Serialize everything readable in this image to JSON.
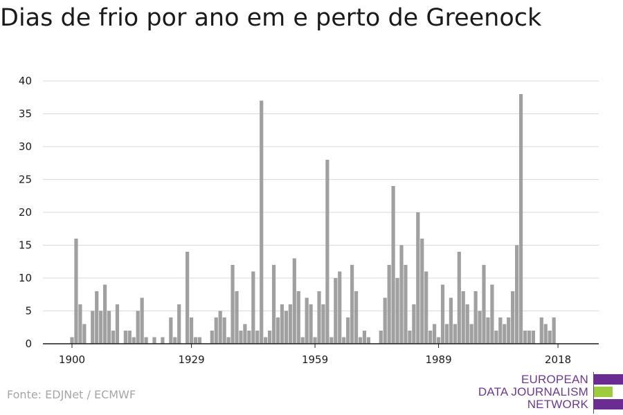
{
  "title": "Dias de frio por ano em e perto de Greenock",
  "source": "Fonte: EDJNet / ECMWF",
  "logo": {
    "line1": "EUROPEAN",
    "line2": "DATA JOURNALISM",
    "line3": "NETWORK",
    "colors": {
      "purple": "#6b2c91",
      "green": "#9ccc3c"
    }
  },
  "chart_data": {
    "type": "bar",
    "title": "Dias de frio por ano em e perto de Greenock",
    "xlabel": "",
    "ylabel": "",
    "ylim": [
      0,
      40
    ],
    "yticks": [
      0,
      5,
      10,
      15,
      20,
      25,
      30,
      35,
      40
    ],
    "xticks": [
      1900,
      1929,
      1959,
      1989,
      2018
    ],
    "x_start": 1900,
    "bar_color": "#a0a0a0",
    "grid": true,
    "values": [
      1,
      16,
      6,
      3,
      0,
      5,
      8,
      5,
      9,
      5,
      2,
      6,
      0,
      2,
      2,
      1,
      5,
      7,
      1,
      0,
      1,
      0,
      1,
      0,
      4,
      1,
      6,
      0,
      14,
      4,
      1,
      1,
      0,
      0,
      2,
      4,
      5,
      4,
      1,
      12,
      8,
      2,
      3,
      2,
      11,
      2,
      37,
      1,
      2,
      12,
      4,
      6,
      5,
      6,
      13,
      8,
      1,
      7,
      6,
      1,
      8,
      6,
      28,
      1,
      10,
      11,
      1,
      4,
      12,
      8,
      1,
      2,
      1,
      0,
      0,
      2,
      7,
      12,
      24,
      10,
      15,
      12,
      2,
      6,
      20,
      16,
      11,
      2,
      3,
      1,
      9,
      3,
      7,
      3,
      14,
      8,
      6,
      3,
      8,
      5,
      12,
      4,
      9,
      2,
      4,
      3,
      4,
      8,
      15,
      38,
      2,
      2,
      2,
      0,
      4,
      3,
      2,
      4
    ]
  }
}
